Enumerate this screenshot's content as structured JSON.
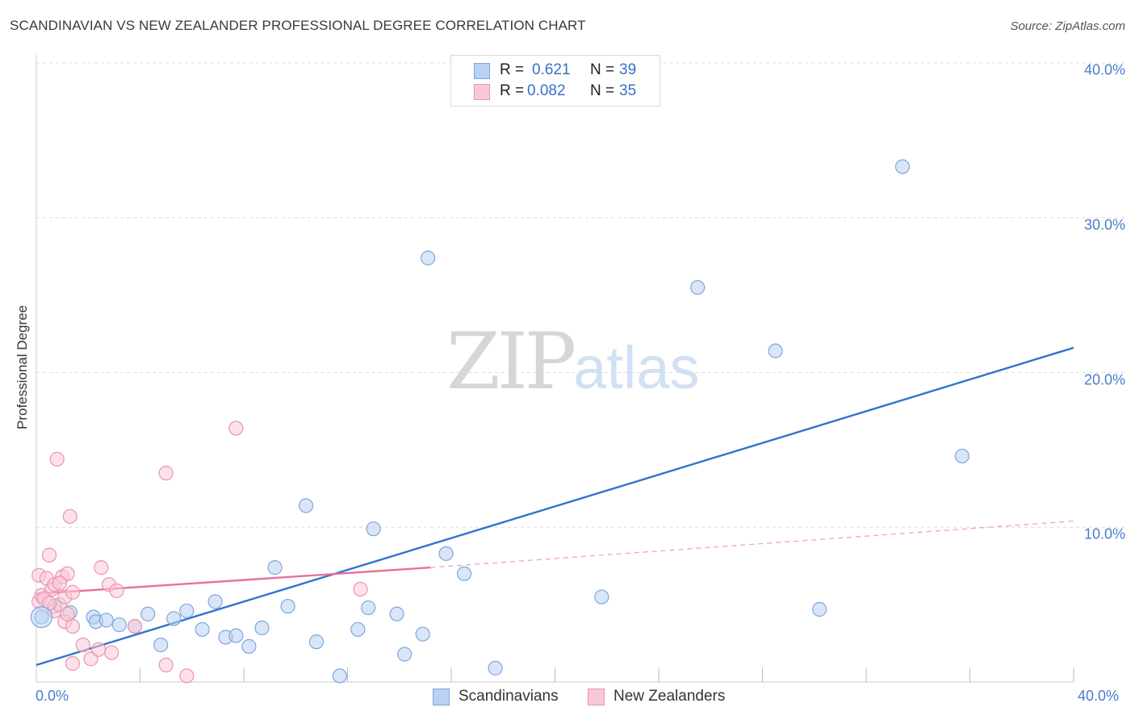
{
  "header": {
    "title": "SCANDINAVIAN VS NEW ZEALANDER PROFESSIONAL DEGREE CORRELATION CHART",
    "source": "Source: ZipAtlas.com"
  },
  "watermark": {
    "zip": "ZIP",
    "atlas": "atlas"
  },
  "legend": {
    "rows": [
      {
        "r_label": "R =",
        "r_value": "0.621",
        "n_label": "N =",
        "n_value": "39"
      },
      {
        "r_label": "R =",
        "r_value": "0.082",
        "n_label": "N =",
        "n_value": "35"
      }
    ]
  },
  "bottom_legend": {
    "items": [
      {
        "label": "Scandinavians"
      },
      {
        "label": "New Zealanders"
      }
    ]
  },
  "colors": {
    "blue_fill": "#b9d2f3",
    "blue_stroke": "#7ea6de",
    "blue_line": "#2f74d0",
    "pink_fill": "#f9c8d7",
    "pink_stroke": "#eb93b0",
    "pink_line": "#e8709a",
    "grid": "#dcdcdc",
    "tick_text": "#4a7cc9"
  },
  "chart_data": {
    "type": "scatter",
    "title": "SCANDINAVIAN VS NEW ZEALANDER PROFESSIONAL DEGREE CORRELATION CHART",
    "xlabel": "",
    "ylabel": "Professional Degree",
    "xlim": [
      0,
      40
    ],
    "ylim": [
      0,
      40
    ],
    "x_tick_labels": [
      "0.0%",
      "40.0%"
    ],
    "y_ticks": [
      {
        "value": 10,
        "label": "10.0%"
      },
      {
        "value": 20,
        "label": "20.0%"
      },
      {
        "value": 30,
        "label": "30.0%"
      },
      {
        "value": 40,
        "label": "40.0%"
      }
    ],
    "grid": true,
    "legend_position": "top-center",
    "series": [
      {
        "name": "Scandinavians",
        "r": 0.621,
        "n": 39,
        "trend": {
          "x0": 0,
          "y0": 1.1,
          "x1": 40,
          "y1": 21.6,
          "dashed_to": null
        },
        "points": [
          [
            0.2,
            4.2
          ],
          [
            0.7,
            4.9
          ],
          [
            1.3,
            4.5
          ],
          [
            2.2,
            4.2
          ],
          [
            2.3,
            3.9
          ],
          [
            2.7,
            4.0
          ],
          [
            3.2,
            3.7
          ],
          [
            3.8,
            3.6
          ],
          [
            4.3,
            4.4
          ],
          [
            4.8,
            2.4
          ],
          [
            5.3,
            4.1
          ],
          [
            5.8,
            4.6
          ],
          [
            6.4,
            3.4
          ],
          [
            6.9,
            5.2
          ],
          [
            7.3,
            2.9
          ],
          [
            7.7,
            3.0
          ],
          [
            8.2,
            2.3
          ],
          [
            8.7,
            3.5
          ],
          [
            9.2,
            7.4
          ],
          [
            9.7,
            4.9
          ],
          [
            10.4,
            11.4
          ],
          [
            10.8,
            2.6
          ],
          [
            11.7,
            0.4
          ],
          [
            12.4,
            3.4
          ],
          [
            12.8,
            4.8
          ],
          [
            13.0,
            9.9
          ],
          [
            13.9,
            4.4
          ],
          [
            14.2,
            1.8
          ],
          [
            14.9,
            3.1
          ],
          [
            15.1,
            27.4
          ],
          [
            15.8,
            8.3
          ],
          [
            16.5,
            7.0
          ],
          [
            17.7,
            0.9
          ],
          [
            21.8,
            5.5
          ],
          [
            25.5,
            25.5
          ],
          [
            28.5,
            21.4
          ],
          [
            30.2,
            4.7
          ],
          [
            33.4,
            33.3
          ],
          [
            35.7,
            14.6
          ]
        ]
      },
      {
        "name": "New Zealanders",
        "r": 0.082,
        "n": 35,
        "trend": {
          "x0": 0,
          "y0": 5.7,
          "x1": 15.2,
          "y1": 7.4,
          "dashed_to": [
            40,
            10.4
          ]
        },
        "points": [
          [
            0.1,
            6.9
          ],
          [
            0.1,
            5.2
          ],
          [
            0.2,
            5.6
          ],
          [
            0.4,
            6.7
          ],
          [
            0.5,
            8.2
          ],
          [
            0.6,
            6.0
          ],
          [
            0.7,
            4.6
          ],
          [
            0.7,
            6.3
          ],
          [
            0.8,
            14.4
          ],
          [
            0.9,
            5.0
          ],
          [
            1.0,
            6.8
          ],
          [
            1.1,
            3.9
          ],
          [
            1.1,
            5.5
          ],
          [
            1.2,
            7.0
          ],
          [
            1.3,
            10.7
          ],
          [
            1.4,
            5.8
          ],
          [
            1.4,
            1.2
          ],
          [
            1.4,
            3.6
          ],
          [
            1.8,
            2.4
          ],
          [
            2.1,
            1.5
          ],
          [
            2.4,
            2.1
          ],
          [
            2.5,
            7.4
          ],
          [
            2.8,
            6.3
          ],
          [
            2.9,
            1.9
          ],
          [
            3.1,
            5.9
          ],
          [
            3.8,
            3.6
          ],
          [
            5.0,
            1.1
          ],
          [
            5.0,
            13.5
          ],
          [
            5.8,
            0.4
          ],
          [
            7.7,
            16.4
          ],
          [
            12.5,
            6.0
          ],
          [
            0.3,
            5.4
          ],
          [
            0.9,
            6.4
          ],
          [
            0.5,
            5.1
          ],
          [
            1.2,
            4.4
          ]
        ]
      }
    ]
  }
}
